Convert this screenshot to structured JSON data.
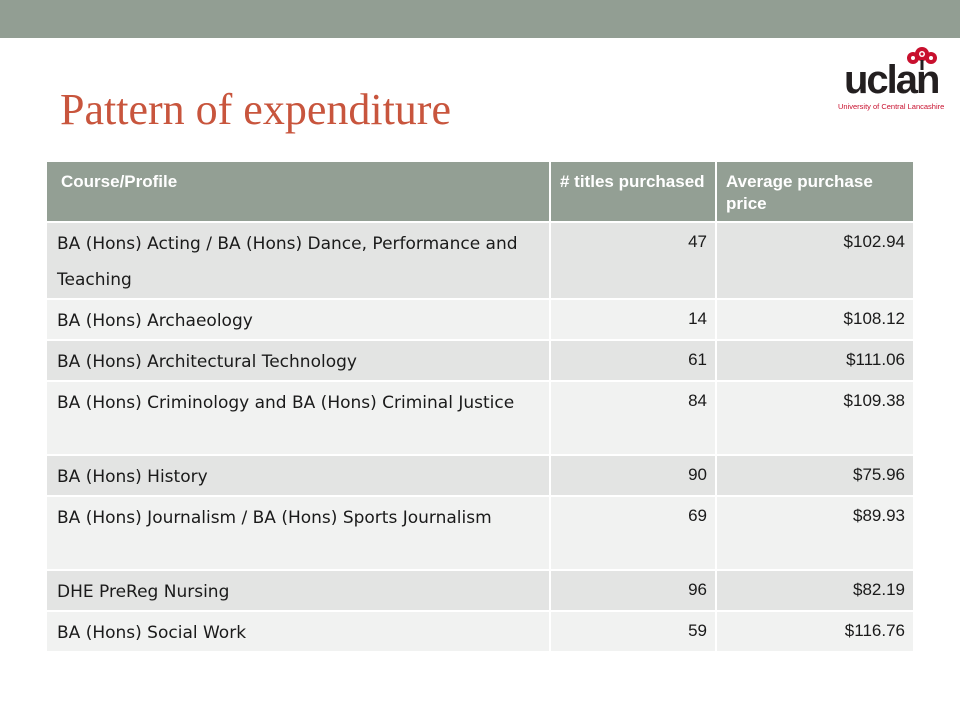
{
  "slide": {
    "title": "Pattern of expenditure",
    "colors": {
      "top_bar": "#929e93",
      "title": "#c8553d",
      "header_fill": "#939f94"
    }
  },
  "logo": {
    "name": "uclan",
    "subtitle": "University of Central Lancashire",
    "icon": "rose-icon"
  },
  "table": {
    "headers": [
      "Course/Profile",
      "# titles purchased",
      "Average purchase price"
    ],
    "rows": [
      {
        "course": "BA (Hons) Acting / BA (Hons) Dance, Performance and Teaching",
        "titles": "47",
        "price": "$102.94"
      },
      {
        "course": "BA (Hons) Archaeology",
        "titles": "14",
        "price": "$108.12"
      },
      {
        "course": "BA (Hons) Architectural Technology",
        "titles": "61",
        "price": "$111.06"
      },
      {
        "course": "BA (Hons) Criminology and BA (Hons) Criminal Justice",
        "titles": "84",
        "price": "$109.38"
      },
      {
        "course": "BA (Hons) History",
        "titles": "90",
        "price": "$75.96"
      },
      {
        "course": "BA (Hons) Journalism / BA (Hons) Sports Journalism",
        "titles": "69",
        "price": "$89.93"
      },
      {
        "course": "DHE PreReg Nursing",
        "titles": "96",
        "price": "$82.19"
      },
      {
        "course": "BA (Hons) Social Work",
        "titles": "59",
        "price": "$116.76"
      }
    ]
  }
}
